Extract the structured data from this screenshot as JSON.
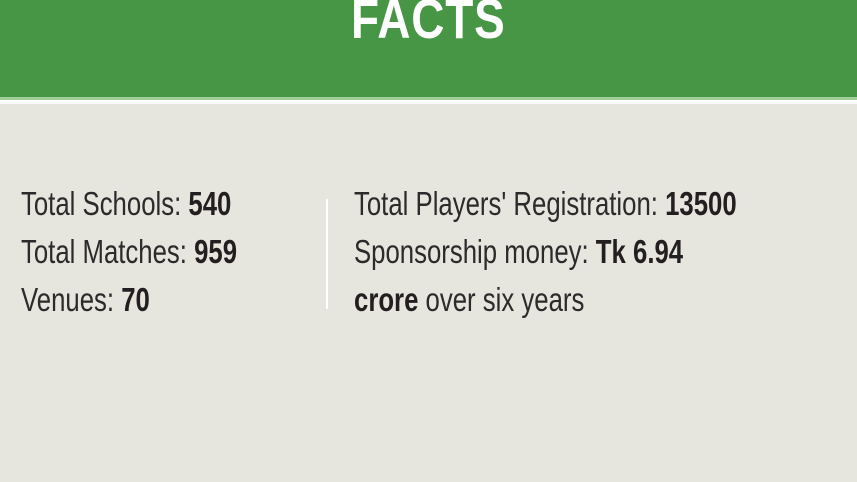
{
  "header": {
    "title": "FACTS",
    "color": "#479645"
  },
  "left": [
    {
      "label": "Total Schools: ",
      "value": "540"
    },
    {
      "label": "Total Matches: ",
      "value": "959"
    },
    {
      "label": "Venues: ",
      "value": "70"
    }
  ],
  "right": {
    "registration": {
      "label": "Total Players' Registration: ",
      "value": "13500"
    },
    "sponsorship": {
      "label": "Sponsorship money: ",
      "value_line1": "Tk 6.94",
      "value_line2": "crore",
      "suffix": " over six years"
    }
  }
}
